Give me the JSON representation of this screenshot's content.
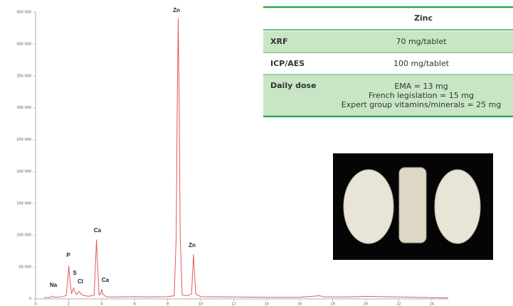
{
  "chart_data": {
    "type": "line",
    "x": [
      0.5,
      0.9,
      1.04,
      1.15,
      1.5,
      1.85,
      1.95,
      2.01,
      2.08,
      2.18,
      2.3,
      2.4,
      2.5,
      2.62,
      2.72,
      2.85,
      3.2,
      3.55,
      3.62,
      3.69,
      3.76,
      3.85,
      3.95,
      4.01,
      4.08,
      4.3,
      5,
      6,
      7,
      8,
      8.4,
      8.52,
      8.58,
      8.64,
      8.7,
      8.76,
      8.88,
      9.2,
      9.45,
      9.52,
      9.57,
      9.62,
      9.7,
      10,
      12,
      14,
      16,
      17.2,
      17.5,
      19,
      20,
      21,
      22,
      23,
      24,
      25
    ],
    "series": [
      {
        "color": "#e05a5a",
        "values": [
          2000,
          2500,
          4500,
          2500,
          3000,
          5000,
          30000,
          52000,
          30000,
          8000,
          17000,
          10000,
          7000,
          12000,
          9000,
          6000,
          4000,
          6000,
          50000,
          93000,
          50000,
          6000,
          8000,
          15000,
          7000,
          3000,
          3000,
          3500,
          3000,
          3500,
          5000,
          100000,
          300000,
          440000,
          300000,
          100000,
          6000,
          5000,
          8000,
          45000,
          70000,
          45000,
          8000,
          3500,
          3000,
          2500,
          2500,
          5000,
          3000,
          3000,
          4000,
          3500,
          3000,
          2500,
          2000,
          1500
        ]
      }
    ],
    "peak_labels": [
      "Na",
      "P",
      "S",
      "Cl",
      "Ca",
      "Ca",
      "Zn",
      "Zn"
    ],
    "xlim": [
      0,
      25
    ],
    "xticks": [
      0,
      2,
      4,
      6,
      8,
      10,
      12,
      14,
      16,
      18,
      20,
      22,
      24
    ],
    "ylim": [
      0,
      450000
    ],
    "yticks": [
      0,
      {
        "value": 50000,
        "label": "50 000"
      },
      {
        "value": 100000,
        "label": "100 000"
      },
      {
        "value": 150000,
        "label": "150 000"
      },
      {
        "value": 200000,
        "label": "200 000"
      },
      {
        "value": 250000,
        "label": "250 000"
      },
      {
        "value": 300000,
        "label": "300 000"
      },
      {
        "value": 350000,
        "label": "350 000"
      },
      {
        "value": 400000,
        "label": "400 000"
      },
      {
        "value": 450000,
        "label": "450 000"
      }
    ]
  },
  "table": {
    "header": "Zinc",
    "rows": [
      [
        "XRF",
        "70 mg/tablet"
      ],
      [
        "ICP/AES",
        "100 mg/tablet"
      ],
      [
        "Daily dose",
        [
          "EMA = 13 mg",
          "French legislation = 15 mg",
          "Expert group vitamins/minerals = 25 mg"
        ]
      ]
    ]
  }
}
